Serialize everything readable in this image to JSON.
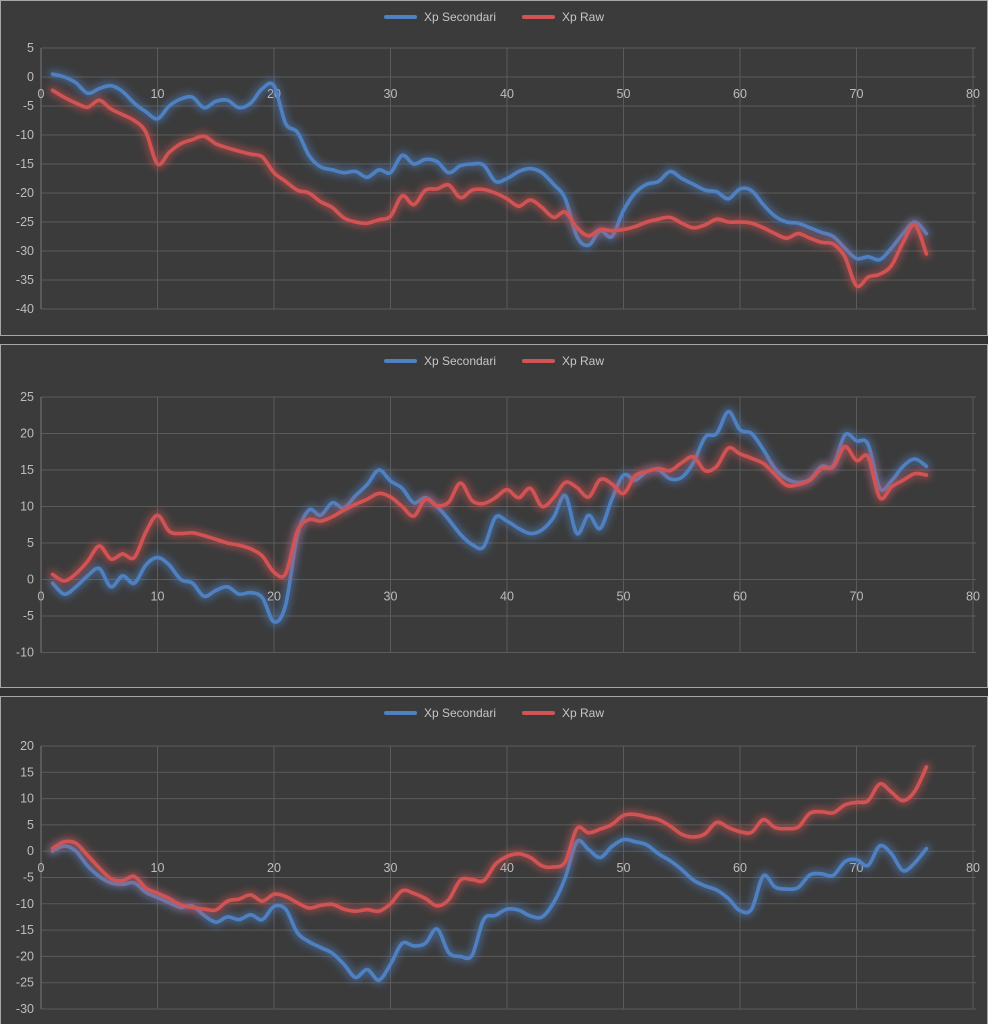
{
  "legend": {
    "series1_label": "Xp Secondari",
    "series2_label": "Xp Raw"
  },
  "colors": {
    "background": "#3b3b3b",
    "panel_border": "#a6a6a6",
    "gridline": "#5b5b5b",
    "axis_line": "#6e6e6e",
    "tick_text": "#bdbdbd",
    "blue_series": "#4f81c2",
    "red_series": "#d25353"
  },
  "chart_data": [
    {
      "type": "line",
      "title": "",
      "xlabel": "",
      "ylabel": "",
      "legend_position": "top",
      "grid": true,
      "xlim": [
        0,
        80
      ],
      "ylim": [
        -40,
        5
      ],
      "xticks": [
        0,
        10,
        20,
        30,
        40,
        50,
        60,
        70,
        80
      ],
      "yticks": [
        5,
        0,
        -5,
        -10,
        -15,
        -20,
        -25,
        -30,
        -35,
        -40
      ],
      "x_start": 1,
      "x_step": 1,
      "series": [
        {
          "name": "Xp Secondari",
          "color": "#4f81c2",
          "values": [
            0.5,
            0.0,
            -1.0,
            -2.8,
            -2.0,
            -1.5,
            -2.5,
            -4.5,
            -6.0,
            -7.2,
            -5.0,
            -3.8,
            -3.5,
            -5.3,
            -4.2,
            -4.0,
            -5.3,
            -4.5,
            -2.0,
            -1.5,
            -8.0,
            -9.5,
            -13.5,
            -15.5,
            -16.0,
            -16.5,
            -16.3,
            -17.3,
            -16.0,
            -16.5,
            -13.5,
            -15.0,
            -14.2,
            -14.6,
            -16.5,
            -15.3,
            -15.0,
            -15.2,
            -18.0,
            -17.5,
            -16.3,
            -15.8,
            -16.5,
            -18.5,
            -21.0,
            -27.5,
            -29.0,
            -26.5,
            -27.5,
            -23.0,
            -20.0,
            -18.5,
            -18.0,
            -16.3,
            -17.5,
            -18.5,
            -19.5,
            -19.8,
            -21.0,
            -19.3,
            -19.6,
            -22.0,
            -24.0,
            -25.0,
            -25.2,
            -26.0,
            -26.8,
            -27.5,
            -29.5,
            -31.3,
            -31.0,
            -31.5,
            -29.5,
            -27.0,
            -25.0,
            -27.0
          ]
        },
        {
          "name": "Xp Raw",
          "color": "#d25353",
          "values": [
            -2.3,
            -3.5,
            -4.5,
            -5.2,
            -4.0,
            -5.5,
            -6.5,
            -7.5,
            -9.5,
            -15.0,
            -13.0,
            -11.5,
            -10.8,
            -10.2,
            -11.5,
            -12.2,
            -12.8,
            -13.3,
            -13.8,
            -16.5,
            -18.0,
            -19.5,
            -20.0,
            -21.5,
            -22.5,
            -24.3,
            -25.0,
            -25.2,
            -24.6,
            -24.0,
            -20.5,
            -22.0,
            -19.5,
            -19.3,
            -18.6,
            -20.8,
            -19.5,
            -19.4,
            -20.0,
            -21.0,
            -22.3,
            -21.2,
            -22.5,
            -24.2,
            -23.3,
            -26.0,
            -27.4,
            -26.3,
            -26.5,
            -26.3,
            -25.8,
            -25.0,
            -24.5,
            -24.2,
            -25.2,
            -26.0,
            -25.5,
            -24.5,
            -25.0,
            -25.0,
            -25.2,
            -26.0,
            -27.0,
            -27.8,
            -27.0,
            -27.8,
            -28.5,
            -28.8,
            -31.0,
            -36.0,
            -34.5,
            -34.0,
            -32.5,
            -28.5,
            -25.5,
            -30.5
          ]
        }
      ]
    },
    {
      "type": "line",
      "title": "",
      "xlabel": "",
      "ylabel": "",
      "legend_position": "top",
      "grid": true,
      "xlim": [
        0,
        80
      ],
      "ylim": [
        -10,
        25
      ],
      "xticks": [
        0,
        10,
        20,
        30,
        40,
        50,
        60,
        70,
        80
      ],
      "yticks": [
        25,
        20,
        15,
        10,
        5,
        0,
        -5,
        -10
      ],
      "x_start": 1,
      "x_step": 1,
      "series": [
        {
          "name": "Xp Secondari",
          "color": "#4f81c2",
          "values": [
            -0.5,
            -2.0,
            -1.0,
            0.5,
            1.5,
            -1.0,
            0.5,
            -0.5,
            2.0,
            3.0,
            2.0,
            0.0,
            -0.5,
            -2.3,
            -1.5,
            -1.0,
            -2.0,
            -1.8,
            -2.5,
            -5.8,
            -3.5,
            6.0,
            9.5,
            8.8,
            10.5,
            9.8,
            11.5,
            13.0,
            15.0,
            13.5,
            12.5,
            10.5,
            11.2,
            10.0,
            8.2,
            6.2,
            4.8,
            4.5,
            8.5,
            8.0,
            7.0,
            6.3,
            6.8,
            8.5,
            11.5,
            6.3,
            8.8,
            7.0,
            11.0,
            14.3,
            13.6,
            14.8,
            15.0,
            13.8,
            14.0,
            16.0,
            19.5,
            20.0,
            23.0,
            20.5,
            20.0,
            17.8,
            15.2,
            13.8,
            13.3,
            13.7,
            15.5,
            15.6,
            19.8,
            19.0,
            18.5,
            12.5,
            13.5,
            15.5,
            16.5,
            15.5
          ]
        },
        {
          "name": "Xp Raw",
          "color": "#d25353",
          "values": [
            0.7,
            -0.2,
            0.8,
            2.5,
            4.6,
            2.8,
            3.5,
            3.0,
            6.5,
            8.8,
            6.6,
            6.3,
            6.4,
            6.0,
            5.5,
            5.0,
            4.7,
            4.2,
            3.2,
            1.0,
            0.8,
            6.6,
            8.2,
            8.0,
            8.6,
            9.5,
            10.3,
            11.0,
            11.8,
            11.3,
            10.0,
            8.7,
            11.0,
            10.1,
            10.6,
            13.2,
            10.8,
            10.4,
            11.2,
            12.3,
            11.2,
            12.5,
            10.0,
            11.2,
            13.3,
            12.6,
            11.3,
            13.7,
            13.1,
            11.8,
            14.2,
            14.8,
            15.2,
            14.9,
            16.0,
            16.8,
            14.9,
            15.5,
            18.0,
            17.2,
            16.6,
            15.9,
            14.4,
            12.9,
            13.0,
            13.6,
            15.2,
            15.4,
            18.2,
            16.3,
            16.8,
            11.2,
            12.7,
            13.6,
            14.5,
            14.3
          ]
        }
      ]
    },
    {
      "type": "line",
      "title": "",
      "xlabel": "",
      "ylabel": "",
      "legend_position": "top",
      "grid": true,
      "xlim": [
        0,
        80
      ],
      "ylim": [
        -30,
        20
      ],
      "xticks": [
        0,
        10,
        20,
        30,
        40,
        50,
        60,
        70,
        80
      ],
      "yticks": [
        20,
        15,
        10,
        5,
        0,
        -5,
        -10,
        -15,
        -20,
        -25,
        -30
      ],
      "x_start": 1,
      "x_step": 1,
      "series": [
        {
          "name": "Xp Secondari",
          "color": "#4f81c2",
          "values": [
            0.0,
            1.0,
            0.0,
            -2.8,
            -4.8,
            -6.0,
            -6.3,
            -6.0,
            -7.8,
            -8.8,
            -9.8,
            -10.7,
            -10.4,
            -12.2,
            -13.5,
            -12.5,
            -13.0,
            -12.1,
            -13.0,
            -10.5,
            -11.0,
            -15.5,
            -17.2,
            -18.3,
            -19.4,
            -21.5,
            -24.0,
            -22.5,
            -24.5,
            -21.5,
            -17.5,
            -18.0,
            -17.5,
            -14.8,
            -19.3,
            -20.0,
            -19.8,
            -13.0,
            -12.2,
            -11.0,
            -11.2,
            -12.3,
            -12.5,
            -9.8,
            -5.0,
            1.8,
            0.3,
            -1.2,
            0.9,
            2.2,
            1.8,
            1.2,
            -0.5,
            -1.8,
            -3.5,
            -5.5,
            -6.6,
            -7.4,
            -9.0,
            -11.3,
            -11.0,
            -4.7,
            -6.8,
            -7.2,
            -6.9,
            -4.5,
            -4.3,
            -4.6,
            -2.0,
            -1.6,
            -2.7,
            1.0,
            -0.5,
            -3.7,
            -2.2,
            0.5
          ]
        },
        {
          "name": "Xp Raw",
          "color": "#d25353",
          "values": [
            0.5,
            1.8,
            1.5,
            -0.8,
            -3.2,
            -5.2,
            -5.6,
            -4.8,
            -7.0,
            -8.0,
            -9.0,
            -10.2,
            -10.7,
            -11.0,
            -11.2,
            -9.5,
            -9.1,
            -8.3,
            -9.5,
            -8.2,
            -8.6,
            -9.8,
            -10.8,
            -10.3,
            -10.1,
            -11.0,
            -11.4,
            -11.1,
            -11.4,
            -10.0,
            -7.5,
            -8.0,
            -9.0,
            -10.4,
            -9.2,
            -5.5,
            -5.4,
            -5.6,
            -2.5,
            -1.0,
            -0.5,
            -1.2,
            -2.8,
            -3.0,
            -2.0,
            4.3,
            3.5,
            4.2,
            5.1,
            6.8,
            7.0,
            6.5,
            6.0,
            4.8,
            3.2,
            2.7,
            3.3,
            5.5,
            4.5,
            3.7,
            3.6,
            6.0,
            4.5,
            4.3,
            4.6,
            7.2,
            7.5,
            7.3,
            8.8,
            9.3,
            9.6,
            12.8,
            11.2,
            9.6,
            11.4,
            16.0
          ]
        }
      ]
    }
  ]
}
